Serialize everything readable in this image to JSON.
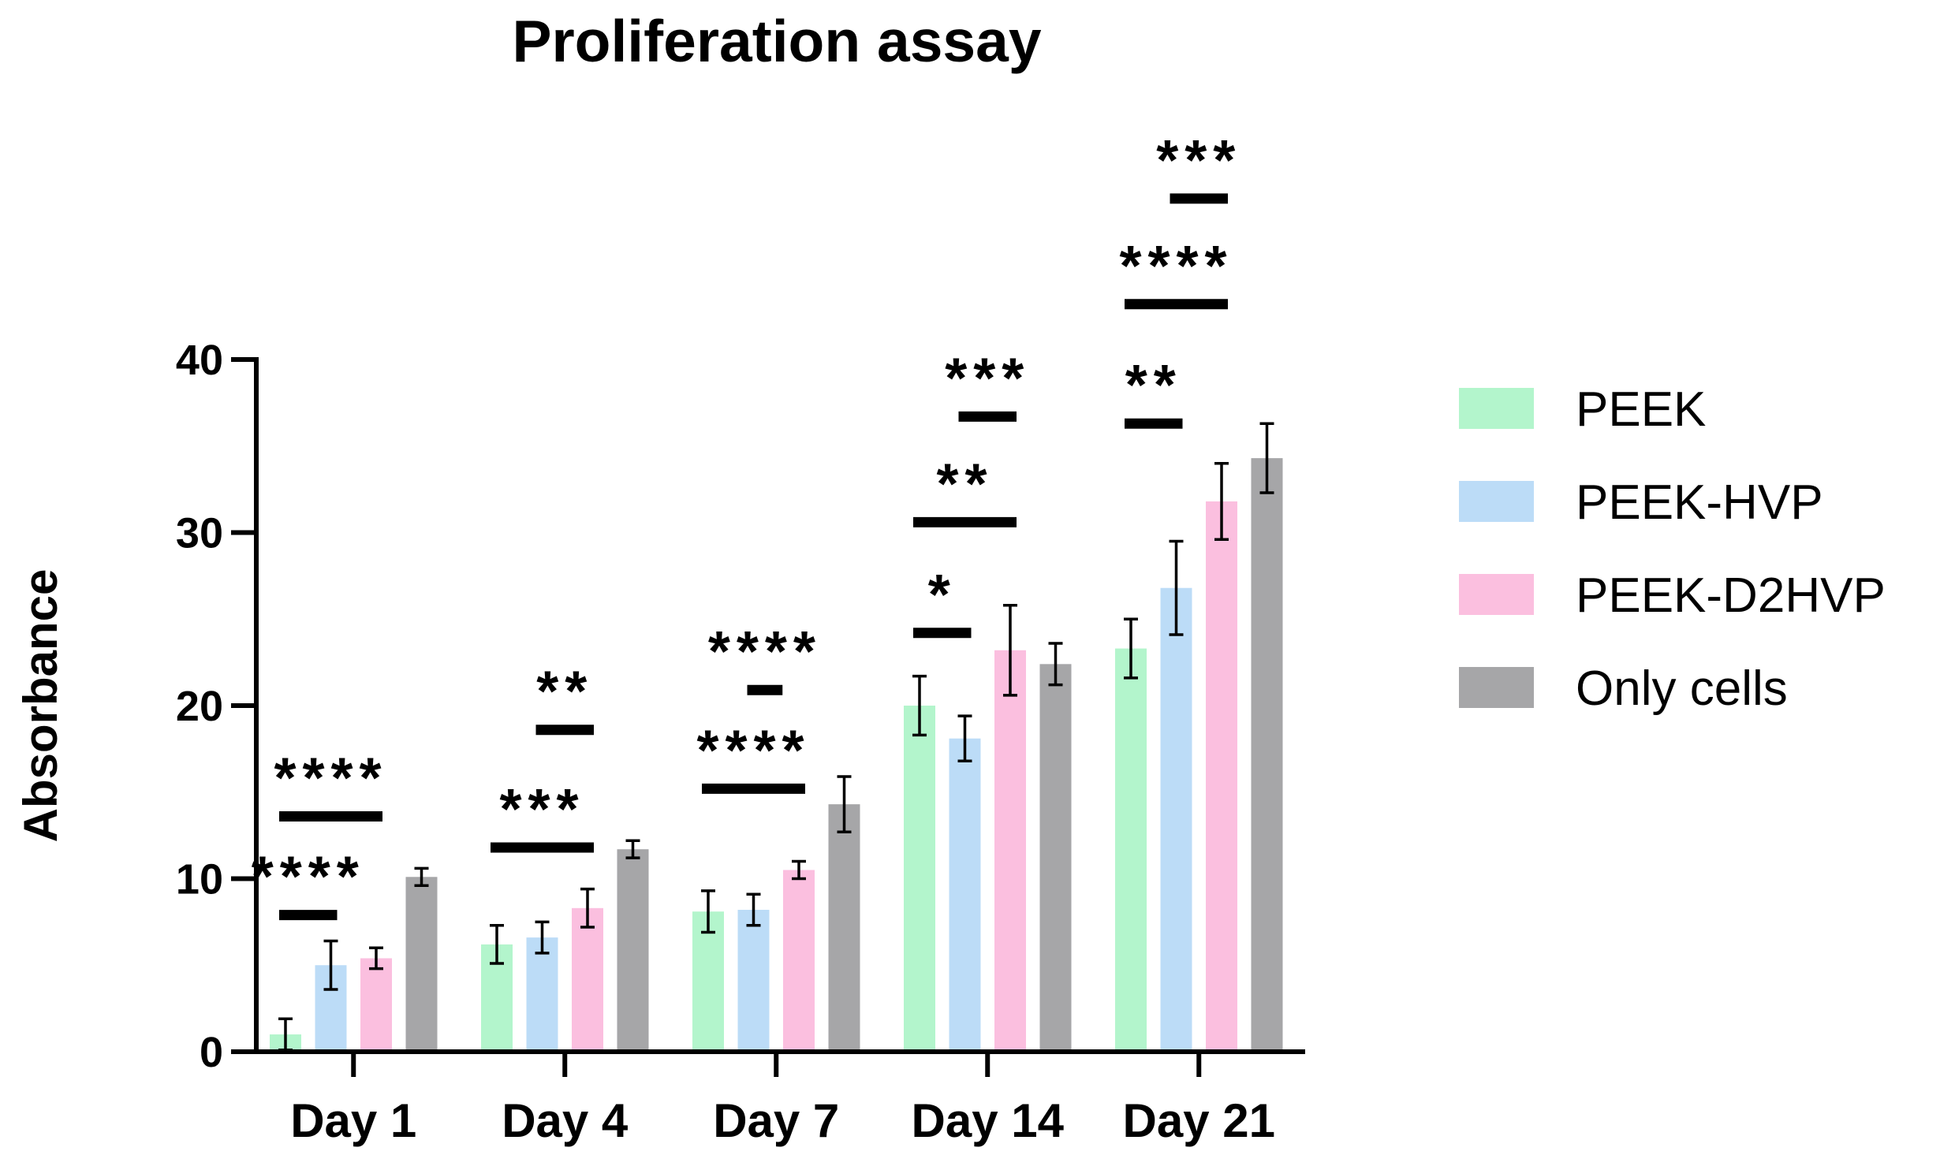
{
  "chart_data": {
    "type": "bar",
    "title": "Proliferation assay",
    "xlabel": "",
    "ylabel": "Absorbance",
    "ylim": [
      0,
      40
    ],
    "yticks": [
      0,
      10,
      20,
      30,
      40
    ],
    "grid": false,
    "legend_position": "right",
    "categories": [
      "Day 1",
      "Day 4",
      "Day 7",
      "Day 14",
      "Day 21"
    ],
    "series": [
      {
        "name": "PEEK",
        "color": "#b3f5cc",
        "values": [
          1.0,
          6.2,
          8.1,
          20.0,
          23.3
        ],
        "errors": [
          0.9,
          1.1,
          1.2,
          1.7,
          1.7
        ]
      },
      {
        "name": "PEEK-HVP",
        "color": "#bcdcf7",
        "values": [
          5.0,
          6.6,
          8.2,
          18.1,
          26.8
        ],
        "errors": [
          1.4,
          0.9,
          0.9,
          1.3,
          2.7
        ]
      },
      {
        "name": "PEEK-D2HVP",
        "color": "#fbbfdf",
        "values": [
          5.4,
          8.3,
          10.5,
          23.2,
          31.8
        ],
        "errors": [
          0.6,
          1.1,
          0.5,
          2.6,
          2.2
        ]
      },
      {
        "name": "Only cells",
        "color": "#a6a6a8",
        "values": [
          10.1,
          11.7,
          14.3,
          22.4,
          34.3
        ],
        "errors": [
          0.5,
          0.5,
          1.6,
          1.2,
          2.0
        ]
      }
    ],
    "annotations": [
      {
        "category": 0,
        "text": "****",
        "bar_y": 7.9,
        "from": 0,
        "to": 1
      },
      {
        "category": 0,
        "text": "****",
        "bar_y": 13.6,
        "from": 0,
        "to": 2
      },
      {
        "category": 1,
        "text": "***",
        "bar_y": 11.8,
        "from": 0,
        "to": 2
      },
      {
        "category": 1,
        "text": "**",
        "bar_y": 18.6,
        "from": 1,
        "to": 2
      },
      {
        "category": 2,
        "text": "****",
        "bar_y": 15.2,
        "from": 0,
        "to": 2
      },
      {
        "category": 2,
        "text": "****",
        "bar_y": 20.9,
        "from": 1,
        "to": 1.5
      },
      {
        "category": 3,
        "text": "*",
        "bar_y": 24.2,
        "from": 0,
        "to": 1
      },
      {
        "category": 3,
        "text": "**",
        "bar_y": 30.6,
        "from": 0,
        "to": 2
      },
      {
        "category": 3,
        "text": "***",
        "bar_y": 36.7,
        "from": 1,
        "to": 2
      },
      {
        "category": 4,
        "text": "**",
        "bar_y": 36.3,
        "from": 0,
        "to": 1
      },
      {
        "category": 4,
        "text": "****",
        "bar_y": 43.2,
        "from": 0,
        "to": 2
      },
      {
        "category": 4,
        "text": "***",
        "bar_y": 49.3,
        "from": 1,
        "to": 2
      }
    ]
  }
}
